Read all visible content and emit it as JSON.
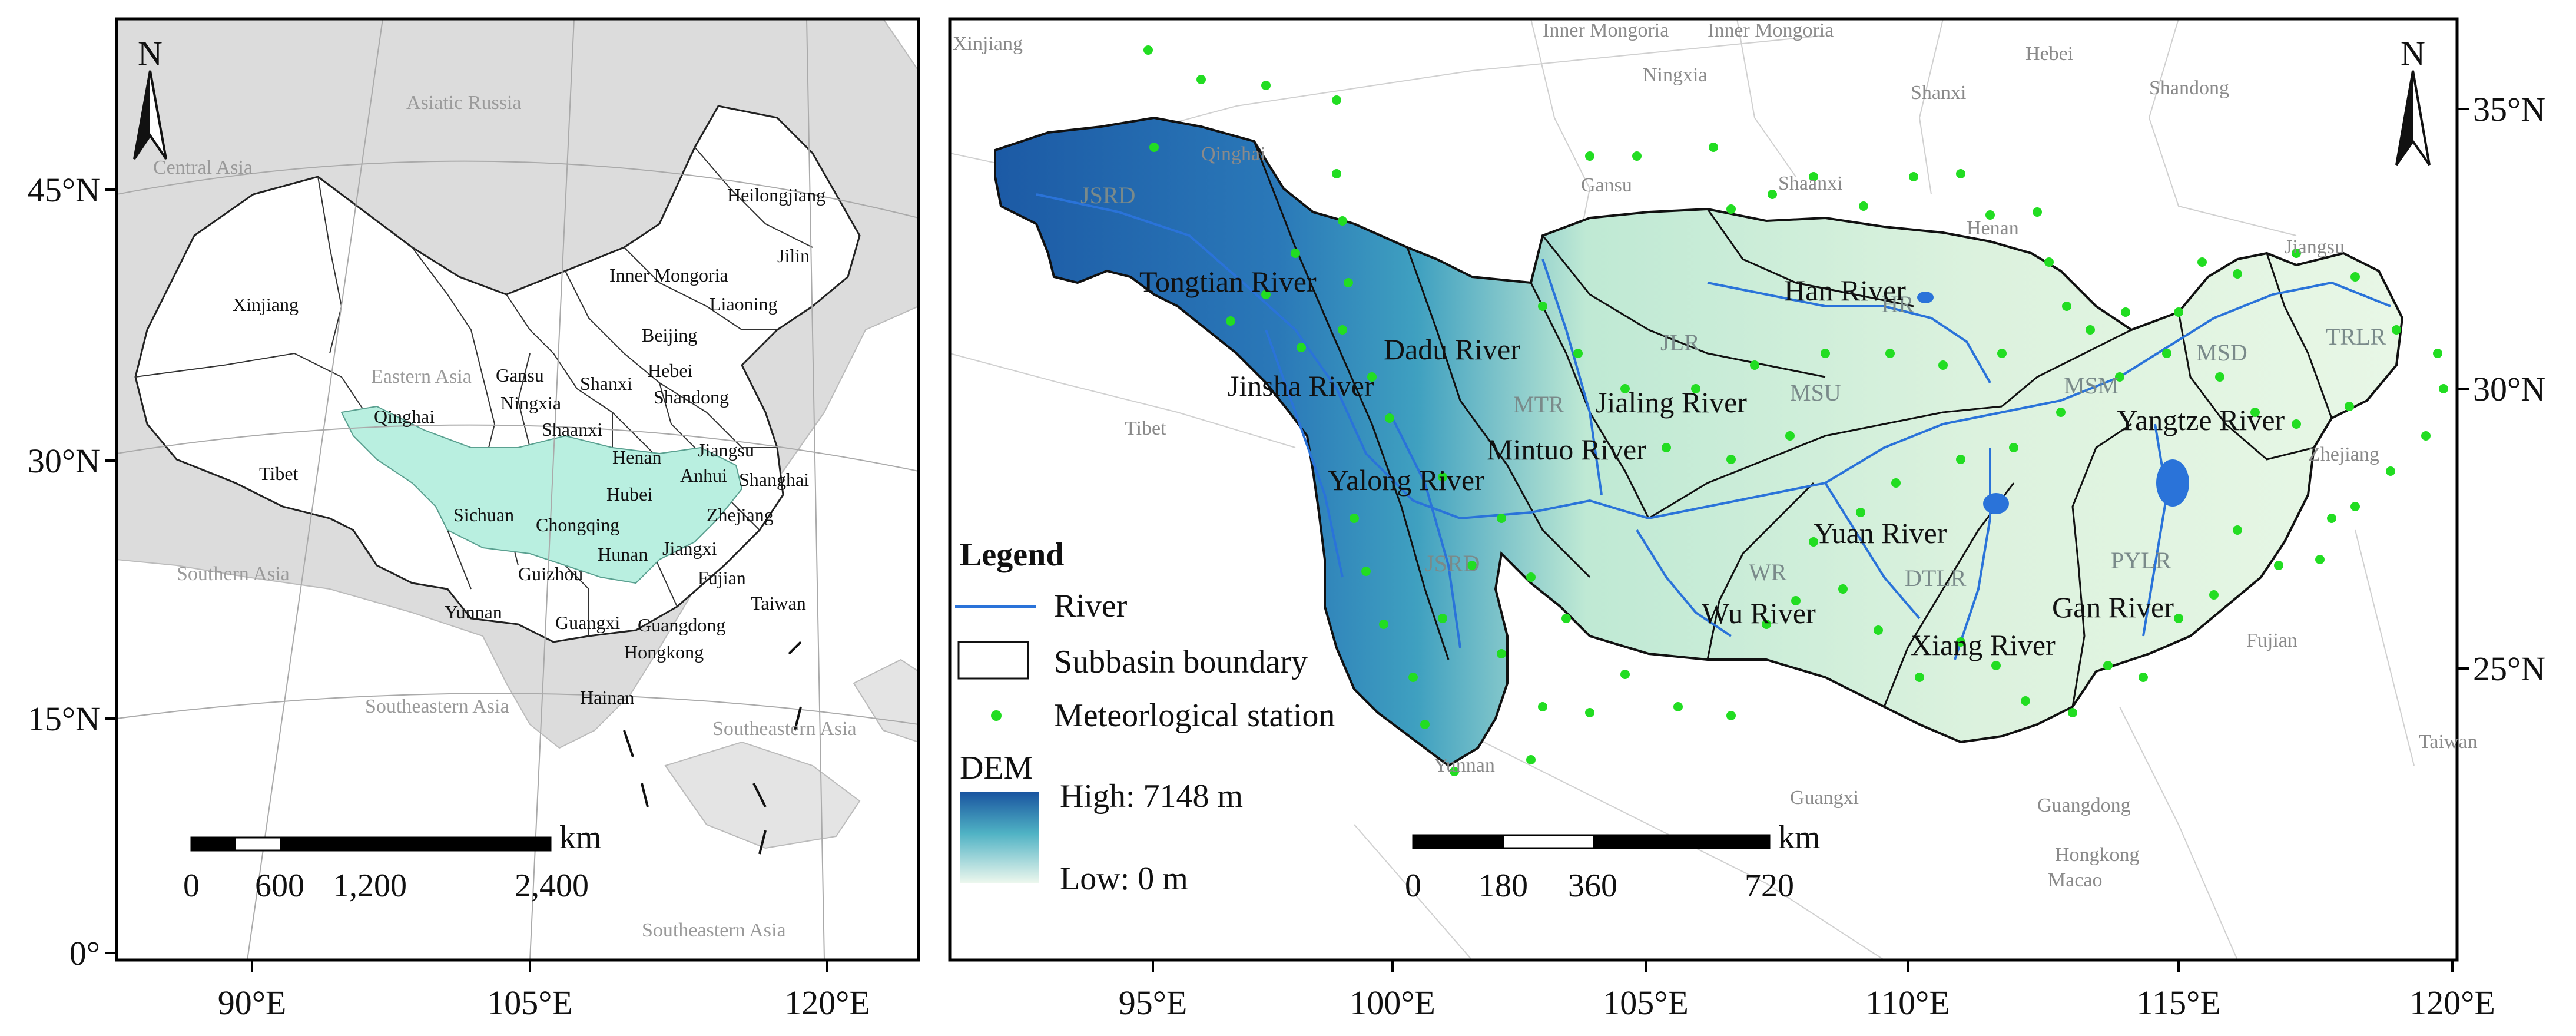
{
  "left_map": {
    "lat_labels": [
      "45°N",
      "30°N",
      "15°N",
      "0°"
    ],
    "lon_labels": [
      "90°E",
      "105°E",
      "120°E"
    ],
    "regions": [
      "Asiatic Russia",
      "Central Asia",
      "Eastern Asia",
      "Southern Asia",
      "Southeastern Asia",
      "Southeastern Asia",
      "Southeastern Asia"
    ],
    "provinces": [
      "Heilongjiang",
      "Jilin",
      "Liaoning",
      "Inner Mongoria",
      "Xinjiang",
      "Beijing",
      "Hebei",
      "Gansu",
      "Ningxia",
      "Shanxi",
      "Shaanxi",
      "Shandong",
      "Qinghai",
      "Henan",
      "Jiangsu",
      "Tibet",
      "Anhui",
      "Shanghai",
      "Hubei",
      "Sichuan",
      "Chongqing",
      "Zhejiang",
      "Jiangxi",
      "Hunan",
      "Guizhou",
      "Fujian",
      "Taiwan",
      "Yunnan",
      "Guangxi",
      "Guangdong",
      "Hongkong",
      "Hainan"
    ],
    "scalebar": {
      "unit": "km",
      "ticks": [
        "0",
        "600",
        "1,200",
        "2,400"
      ]
    },
    "north_label": "N"
  },
  "right_map": {
    "lat_labels": [
      "35°N",
      "30°N",
      "25°N"
    ],
    "lon_labels": [
      "95°E",
      "100°E",
      "105°E",
      "110°E",
      "115°E",
      "120°E"
    ],
    "outer_provinces": [
      "Xinjiang",
      "Inner Mongoria",
      "Inner Mongoria",
      "Ningxia",
      "Hebei",
      "Shanxi",
      "Shandong",
      "Qinghai",
      "Gansu",
      "Shaanxi",
      "Henan",
      "Jiangsu",
      "Tibet",
      "Zhejiang",
      "Fujian",
      "Taiwan",
      "Yunnan",
      "Guangxi",
      "Guangdong",
      "Hongkong",
      "Macao"
    ],
    "subbasin_codes": [
      "JSRD",
      "MTR",
      "JLR",
      "HR",
      "MSU",
      "MSM",
      "MSD",
      "TRLR",
      "JSRD",
      "WR",
      "DTLR",
      "PYLR"
    ],
    "rivers": [
      "Tongtian River",
      "Dadu River",
      "Jinsha River",
      "Yalong River",
      "Mintuo River",
      "Jialing River",
      "Han River",
      "Yangtze River",
      "Yuan River",
      "Wu River",
      "Xiang River",
      "Gan River"
    ],
    "legend": {
      "title": "Legend",
      "river": "River",
      "subbasin": "Subbasin boundary",
      "station": "Meteorlogical station",
      "dem_title": "DEM",
      "dem_high": "High: 7148 m",
      "dem_low": "Low: 0 m"
    },
    "scalebar": {
      "unit": "km",
      "ticks": [
        "0",
        "180",
        "360",
        "720"
      ]
    },
    "north_label": "N"
  },
  "colors": {
    "basin_highlight": "#b9efe0",
    "land_gray": "#dcdcdc",
    "dem_high": "#1f5fa8",
    "dem_mid": "#5fc4c0",
    "dem_low": "#eef8ee",
    "river": "#2a73d9",
    "station": "#22dd22"
  }
}
